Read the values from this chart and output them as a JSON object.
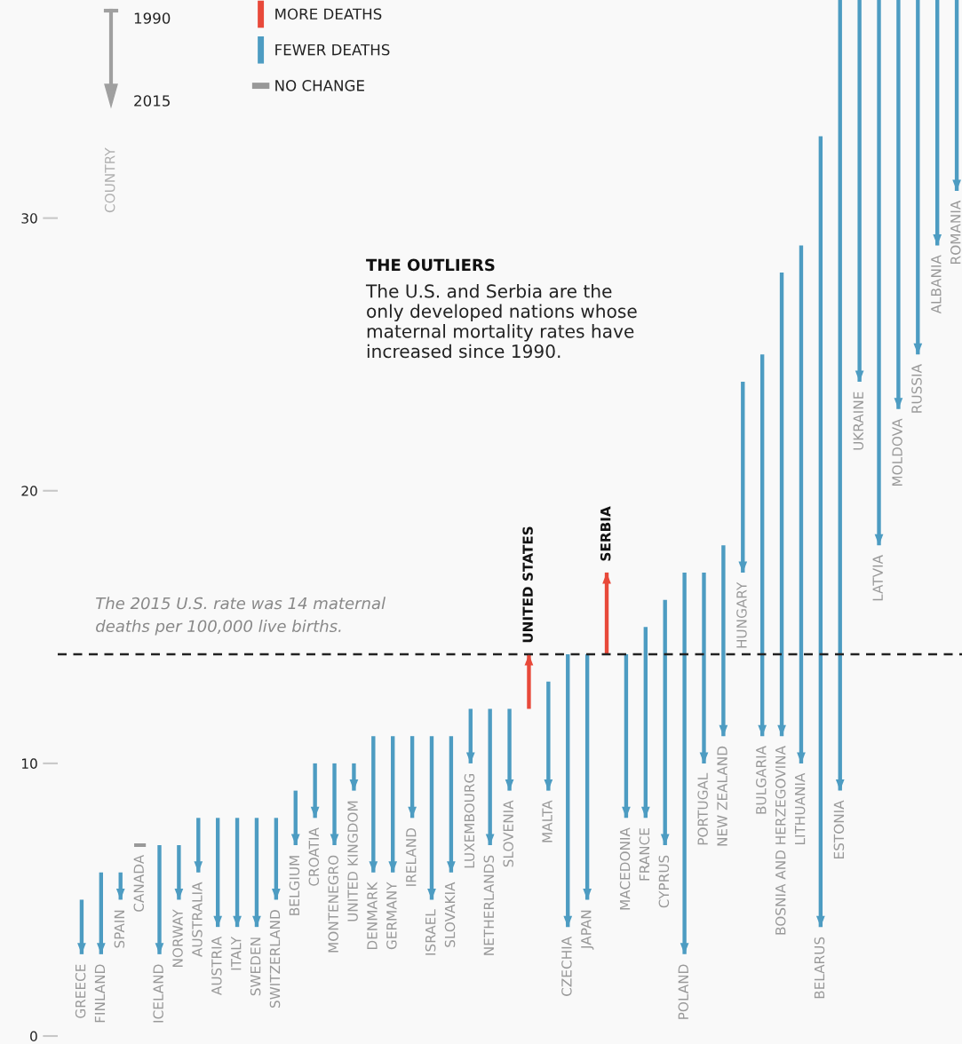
{
  "chart_data": {
    "type": "bar",
    "categories": [
      "GREECE",
      "FINLAND",
      "SPAIN",
      "CANADA",
      "ICELAND",
      "NORWAY",
      "AUSTRALIA",
      "AUSTRIA",
      "ITALY",
      "SWEDEN",
      "SWITZERLAND",
      "BELGIUM",
      "CROATIA",
      "MONTENEGRO",
      "UNITED KINGDOM",
      "DENMARK",
      "GERMANY",
      "IRELAND",
      "ISRAEL",
      "SLOVAKIA",
      "LUXEMBOURG",
      "NETHERLANDS",
      "SLOVENIA",
      "UNITED STATES",
      "MALTA",
      "CZECHIA",
      "JAPAN",
      "SERBIA",
      "MACEDONIA",
      "FRANCE",
      "CYPRUS",
      "POLAND",
      "PORTUGAL",
      "NEW ZEALAND",
      "HUNGARY",
      "BULGARIA",
      "BOSNIA AND HERZEGOVINA",
      "LITHUANIA",
      "BELARUS",
      "ESTONIA",
      "UKRAINE",
      "LATVIA",
      "MOLDOVA",
      "RUSSIA",
      "ALBANIA",
      "ROMANIA"
    ],
    "series": [
      {
        "name": "MORE DEATHS",
        "color": "#e8493a",
        "base": [
          null,
          null,
          null,
          null,
          null,
          null,
          null,
          null,
          null,
          null,
          null,
          null,
          null,
          null,
          null,
          null,
          null,
          null,
          null,
          null,
          null,
          null,
          null,
          12,
          null,
          null,
          null,
          14,
          null,
          null,
          null,
          null,
          null,
          null,
          null,
          null,
          null,
          null,
          null,
          null,
          null,
          null,
          null,
          null,
          null,
          null
        ],
        "values": [
          null,
          null,
          null,
          null,
          null,
          null,
          null,
          null,
          null,
          null,
          null,
          null,
          null,
          null,
          null,
          null,
          null,
          null,
          null,
          null,
          null,
          null,
          null,
          2,
          null,
          null,
          null,
          3,
          null,
          null,
          null,
          null,
          null,
          null,
          null,
          null,
          null,
          null,
          null,
          null,
          null,
          null,
          null,
          null,
          null,
          null
        ]
      },
      {
        "name": "FEWER DEATHS",
        "color": "#4d9cc2",
        "base": [
          5,
          6,
          6,
          null,
          7,
          7,
          8,
          8,
          8,
          8,
          8,
          9,
          10,
          10,
          10,
          11,
          11,
          11,
          11,
          11,
          12,
          12,
          12,
          null,
          13,
          14,
          14,
          null,
          14,
          15,
          16,
          17,
          17,
          18,
          24,
          25,
          28,
          29,
          33,
          38,
          38,
          38,
          38,
          38,
          38,
          38
        ],
        "values": [
          -2,
          -3,
          -1,
          null,
          -4,
          -2,
          -2,
          -4,
          -4,
          -4,
          -3,
          -2,
          -2,
          -3,
          -1,
          -5,
          -5,
          -3,
          -6,
          -5,
          -2,
          -5,
          -3,
          null,
          -4,
          -10,
          -9,
          null,
          -6,
          -7,
          -9,
          -14,
          -7,
          -7,
          -7,
          -14,
          -17,
          -19,
          -29,
          -29,
          -14,
          -20,
          -15,
          -13,
          -9,
          -7
        ]
      },
      {
        "name": "NO CHANGE",
        "color": "#999999",
        "base": [
          null,
          null,
          null,
          7,
          null,
          null,
          null,
          null,
          null,
          null,
          null,
          null,
          null,
          null,
          null,
          null,
          null,
          null,
          null,
          null,
          null,
          null,
          null,
          null,
          null,
          null,
          null,
          null,
          null,
          null,
          null,
          null,
          null,
          null,
          null,
          null,
          null,
          null,
          null,
          null,
          null,
          null,
          null,
          null,
          null,
          null
        ],
        "values": [
          null,
          null,
          null,
          0,
          null,
          null,
          null,
          null,
          null,
          null,
          null,
          null,
          null,
          null,
          null,
          null,
          null,
          null,
          null,
          null,
          null,
          null,
          null,
          null,
          null,
          null,
          null,
          null,
          null,
          null,
          null,
          null,
          null,
          null,
          null,
          null,
          null,
          null,
          null,
          null,
          null,
          null,
          null,
          null,
          null,
          null
        ]
      }
    ],
    "ylim": [
      0,
      38
    ],
    "yticks": [
      0,
      10,
      20,
      30
    ],
    "ref_lines": [
      {
        "axis": "y",
        "value": 14,
        "label": "The 2015 U.S. rate was 14 maternal\ndeaths per 100,000 live births.",
        "color": "#222222",
        "line_style": "dashed"
      }
    ],
    "legend": "top left",
    "annotations": [
      "1990",
      "2015",
      "COUNTRY",
      "THE OUTLIERS",
      "The U.S. and Serbia are the\nonly developed nations whose\nmaternal mortality rates have\nincreased since 1990."
    ]
  }
}
